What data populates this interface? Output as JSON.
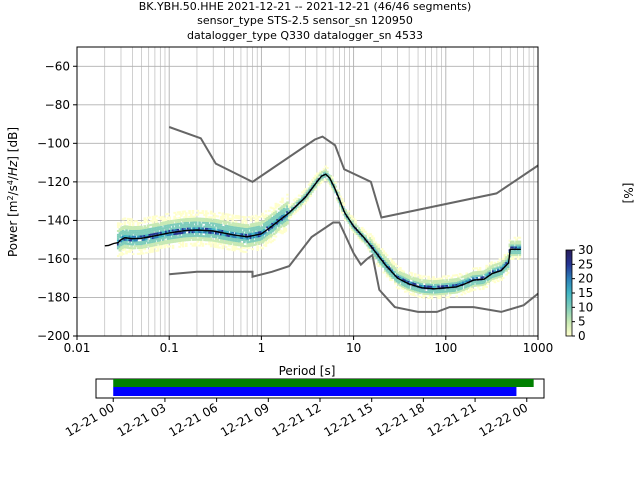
{
  "title": {
    "line1": "BK.YBH.50.HHE   2021-12-21 -- 2021-12-21  (46/46 segments)",
    "line2": "sensor_type STS-2.5 sensor_sn 120950",
    "line3": "datalogger_type Q330 datalogger_sn 4533"
  },
  "colors": {
    "axes": "#000000",
    "grid": "#b0b0b0",
    "model": "#666666",
    "mean": "#000000",
    "timeline_top": "#008000",
    "timeline_bottom": "#0000ff"
  },
  "chart_data": [
    {
      "type": "heatmap",
      "name": "ppsd",
      "xlabel": "Period [s]",
      "ylabel": "Power [m²/s⁴/Hz] [dB]",
      "xscale": "log",
      "xlim": [
        0.01,
        1000
      ],
      "ylim": [
        -200,
        -50
      ],
      "xticks": [
        {
          "value": 0.01,
          "label": "0.01"
        },
        {
          "value": 0.1,
          "label": "0.1"
        },
        {
          "value": 1,
          "label": "1"
        },
        {
          "value": 10,
          "label": "10"
        },
        {
          "value": 100,
          "label": "100"
        },
        {
          "value": 1000,
          "label": "1000"
        }
      ],
      "yticks": [
        {
          "value": -60,
          "label": "−60"
        },
        {
          "value": -80,
          "label": "−80"
        },
        {
          "value": -100,
          "label": "−100"
        },
        {
          "value": -120,
          "label": "−120"
        },
        {
          "value": -140,
          "label": "−140"
        },
        {
          "value": -160,
          "label": "−160"
        },
        {
          "value": -180,
          "label": "−180"
        },
        {
          "value": -200,
          "label": "−200"
        }
      ],
      "grid": true,
      "nhnm": [
        [
          0.1,
          -168
        ],
        [
          0.2,
          -166.7
        ],
        [
          0.8,
          -166.7
        ],
        [
          0.8,
          -169.2
        ],
        [
          1.3,
          -166.7
        ],
        [
          2,
          -163.7
        ],
        [
          3.5,
          -148.6
        ],
        [
          6,
          -141.1
        ],
        [
          7,
          -141.1
        ],
        [
          10,
          -157
        ],
        [
          12,
          -163
        ],
        [
          14,
          -160
        ],
        [
          16,
          -158
        ],
        [
          19,
          -176
        ],
        [
          28,
          -185
        ],
        [
          50,
          -187.5
        ],
        [
          80,
          -187.5
        ],
        [
          110,
          -185
        ],
        [
          200,
          -185
        ],
        [
          400,
          -187.5
        ],
        [
          700,
          -184
        ],
        [
          1000,
          -178
        ]
      ],
      "nlnm": [
        [
          0.1,
          -91.5
        ],
        [
          0.22,
          -97.4
        ],
        [
          0.32,
          -110.5
        ],
        [
          0.8,
          -120
        ],
        [
          3.8,
          -98
        ],
        [
          4.6,
          -96.5
        ],
        [
          6.3,
          -101
        ],
        [
          7.9,
          -113.5
        ],
        [
          15.4,
          -120
        ],
        [
          20,
          -138.5
        ],
        [
          354.8,
          -126
        ],
        [
          1000,
          -111.5
        ]
      ],
      "mean": [
        [
          0.02,
          -153.2
        ],
        [
          0.022,
          -153
        ],
        [
          0.025,
          -152
        ],
        [
          0.028,
          -151.5
        ],
        [
          0.03,
          -150
        ],
        [
          0.033,
          -149
        ],
        [
          0.04,
          -149.5
        ],
        [
          0.05,
          -149.3
        ],
        [
          0.07,
          -148
        ],
        [
          0.1,
          -146.5
        ],
        [
          0.15,
          -145.3
        ],
        [
          0.2,
          -145
        ],
        [
          0.3,
          -145.5
        ],
        [
          0.5,
          -147.5
        ],
        [
          0.7,
          -148.5
        ],
        [
          1,
          -147
        ],
        [
          1.3,
          -143
        ],
        [
          2,
          -136
        ],
        [
          3,
          -128
        ],
        [
          4,
          -120
        ],
        [
          4.5,
          -117
        ],
        [
          5,
          -116
        ],
        [
          5.5,
          -118
        ],
        [
          6.2,
          -123
        ],
        [
          7,
          -129
        ],
        [
          8,
          -136
        ],
        [
          10,
          -143
        ],
        [
          13,
          -149
        ],
        [
          17,
          -156
        ],
        [
          22,
          -163
        ],
        [
          30,
          -170
        ],
        [
          40,
          -173
        ],
        [
          55,
          -175
        ],
        [
          75,
          -175.5
        ],
        [
          100,
          -175
        ],
        [
          130,
          -174.5
        ],
        [
          160,
          -173
        ],
        [
          200,
          -171
        ],
        [
          260,
          -170.5
        ],
        [
          320,
          -167.5
        ],
        [
          400,
          -166
        ],
        [
          480,
          -162
        ],
        [
          500,
          -155
        ],
        [
          600,
          -155
        ],
        [
          650,
          -155
        ]
      ],
      "spread_label": "percentile band"
    },
    {
      "type": "colorbar",
      "name": "colorbar",
      "label": "[%]",
      "range": [
        0,
        30
      ],
      "ticks": [
        {
          "value": 0,
          "label": "0"
        },
        {
          "value": 5,
          "label": "5"
        },
        {
          "value": 10,
          "label": "10"
        },
        {
          "value": 15,
          "label": "15"
        },
        {
          "value": 20,
          "label": "20"
        },
        {
          "value": 25,
          "label": "25"
        },
        {
          "value": 30,
          "label": "30"
        }
      ],
      "colormap": [
        "#ffffcc",
        "#c7e9b4",
        "#7fcdbb",
        "#41b6c4",
        "#2c7fb8",
        "#253494",
        "#2a1e5c"
      ]
    },
    {
      "type": "timeline",
      "name": "coverage",
      "xlim_hours": [
        -1,
        25
      ],
      "ticks": [
        {
          "hour": 0,
          "label": "12-21 00"
        },
        {
          "hour": 3,
          "label": "12-21 03"
        },
        {
          "hour": 6,
          "label": "12-21 06"
        },
        {
          "hour": 9,
          "label": "12-21 09"
        },
        {
          "hour": 12,
          "label": "12-21 12"
        },
        {
          "hour": 15,
          "label": "12-21 15"
        },
        {
          "hour": 18,
          "label": "12-21 18"
        },
        {
          "hour": 21,
          "label": "12-21 21"
        },
        {
          "hour": 24,
          "label": "12-22 00"
        }
      ],
      "bars": [
        {
          "name": "processed",
          "start": 0,
          "end": 24.4
        },
        {
          "name": "data",
          "start": 0,
          "end": 23.4
        }
      ]
    }
  ]
}
